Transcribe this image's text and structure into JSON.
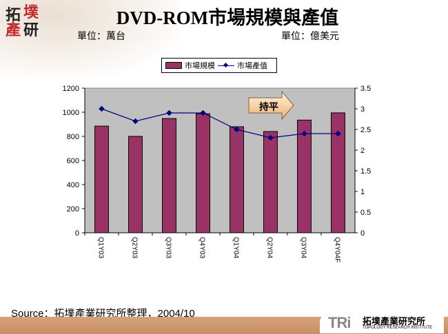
{
  "header": {
    "title": "DVD-ROM市場規模與產值",
    "unit_left": "單位：萬台",
    "unit_right": "單位：億美元",
    "logo_text": "拓墣產研"
  },
  "footer": {
    "source": "Source：拓墣產業研究所整理，2004/10",
    "logo_abbr": "TRi",
    "logo_cn": "拓墣產業研究所",
    "logo_en": "TOPOLOGY RESEARCH INSTITUTE"
  },
  "chart_data": {
    "type": "bar+line",
    "categories": [
      "Q1Y03",
      "Q2Y03",
      "Q3Y03",
      "Q4Y03",
      "Q1Y04",
      "Q2Y04",
      "Q3Y04",
      "Q4Y04F"
    ],
    "series": [
      {
        "name": "市場規模",
        "type": "bar",
        "axis": "left",
        "color": "#993366",
        "values": [
          885,
          800,
          948,
          988,
          880,
          840,
          935,
          995
        ]
      },
      {
        "name": "市場產值",
        "type": "line",
        "axis": "right",
        "color": "#000080",
        "values": [
          3.0,
          2.7,
          2.9,
          2.9,
          2.5,
          2.3,
          2.4,
          2.4
        ]
      }
    ],
    "y_left": {
      "ylim": [
        0,
        1200
      ],
      "ticks": [
        "0",
        "200",
        "400",
        "600",
        "800",
        "1000",
        "1200"
      ]
    },
    "y_right": {
      "ylim": [
        0,
        3.5
      ],
      "ticks": [
        "0",
        "0.5",
        "1",
        "1.5",
        "2",
        "2.5",
        "3",
        "3.5"
      ]
    },
    "legend": "top",
    "annotation": "持平",
    "plot_background": "#C0C0C0"
  }
}
